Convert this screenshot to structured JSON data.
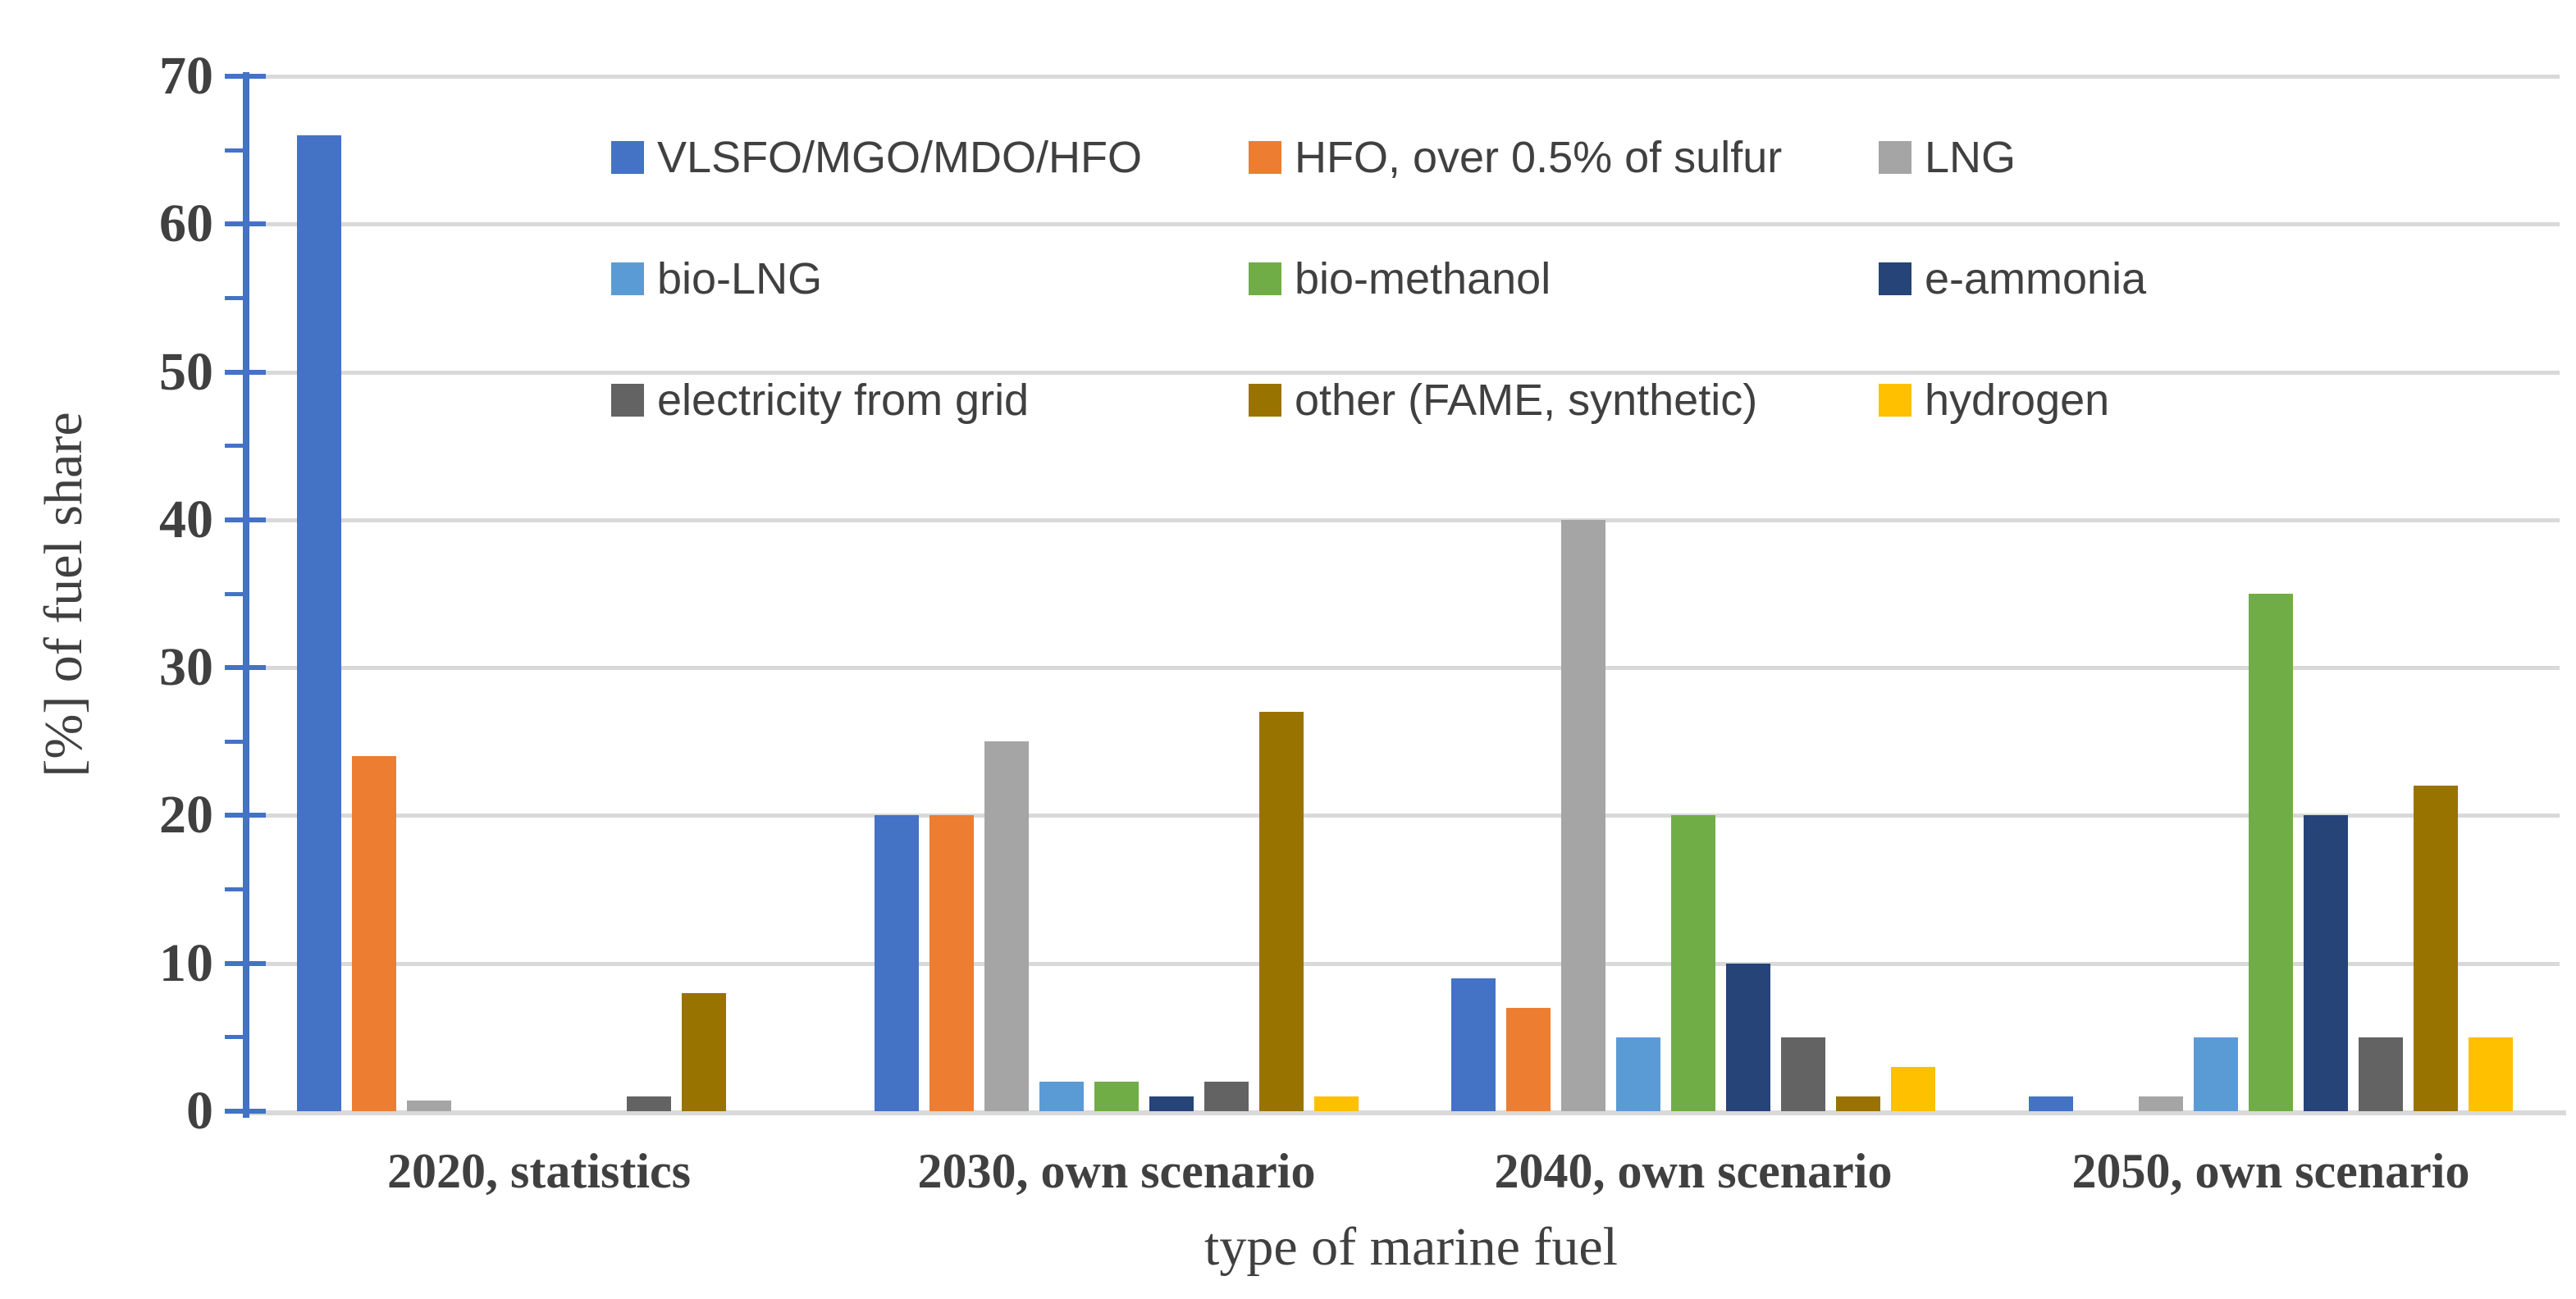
{
  "chart_data": {
    "type": "bar",
    "title": "",
    "xlabel": "type of marine fuel",
    "ylabel": "[%] of fuel share",
    "ylim": [
      0,
      70
    ],
    "y_ticks": [
      0,
      10,
      20,
      30,
      40,
      50,
      60,
      70
    ],
    "y_minor_ticks": [
      5,
      15,
      25,
      35,
      45,
      55,
      65
    ],
    "grid": true,
    "legend_position": "inside-top, 3 columns x 3 rows",
    "categories": [
      "2020, statistics",
      "2030, own scenario",
      "2040, own scenario",
      "2050, own scenario"
    ],
    "series": [
      {
        "name": "VLSFO/MGO/MDO/HFO",
        "color": "#4472C4",
        "values": [
          66,
          20,
          9,
          1
        ]
      },
      {
        "name": "HFO, over 0.5% of sulfur",
        "color": "#ED7D31",
        "values": [
          24,
          20,
          7,
          0
        ]
      },
      {
        "name": "LNG",
        "color": "#A5A5A5",
        "values": [
          0.7,
          25,
          40,
          1
        ]
      },
      {
        "name": "bio-LNG",
        "color": "#5B9BD5",
        "values": [
          0,
          2,
          5,
          5
        ]
      },
      {
        "name": "bio-methanol",
        "color": "#70AD47",
        "values": [
          0,
          2,
          20,
          35
        ]
      },
      {
        "name": "e-ammonia",
        "color": "#264478",
        "values": [
          0,
          1,
          10,
          20
        ]
      },
      {
        "name": "electricity from grid",
        "color": "#636363",
        "values": [
          1,
          2,
          5,
          5
        ]
      },
      {
        "name": "other (FAME, synthetic)",
        "color": "#997300",
        "values": [
          8,
          27,
          1,
          22
        ]
      },
      {
        "name": "hydrogen",
        "color": "#FFC000",
        "values": [
          0,
          1,
          3,
          5
        ]
      }
    ],
    "colors": {
      "axis_line": "#4472C4",
      "gridline": "#D9D9D9",
      "text": "#404040"
    }
  }
}
